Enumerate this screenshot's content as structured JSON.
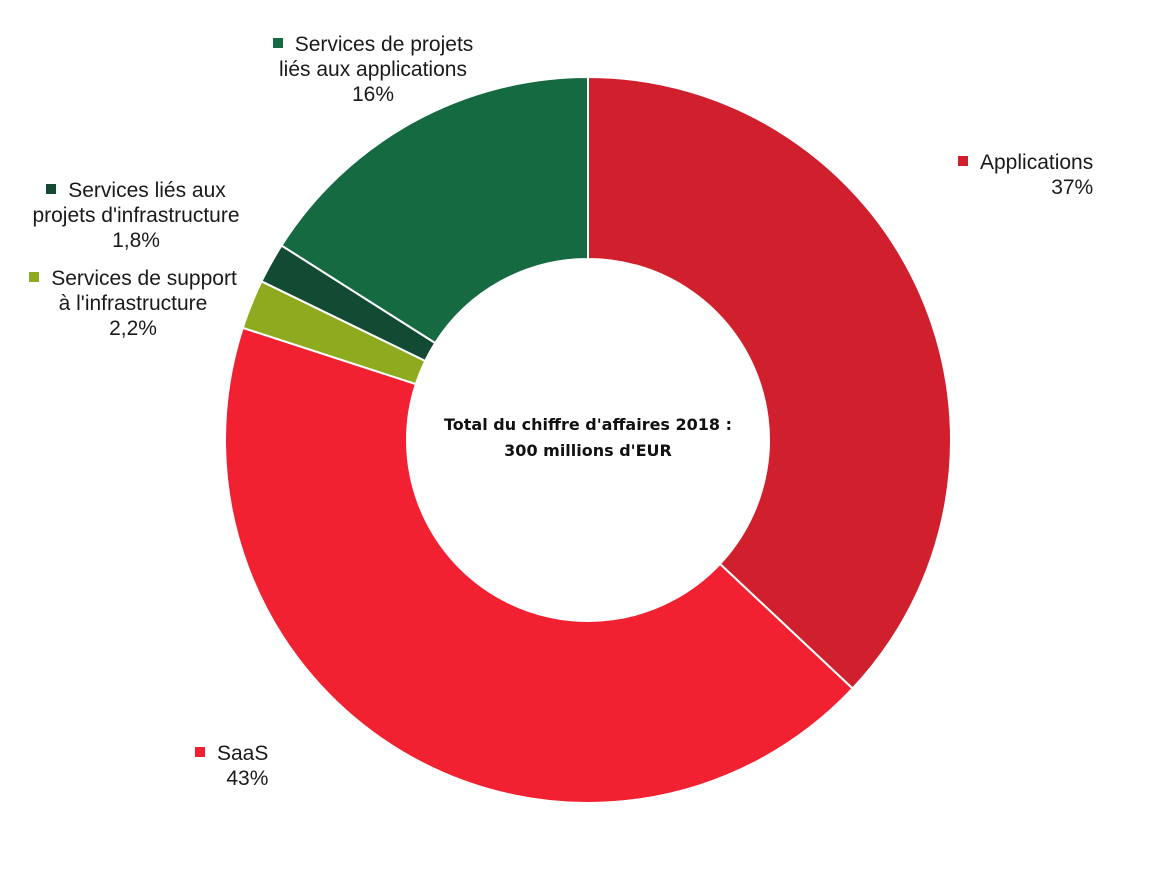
{
  "chart_data": {
    "type": "pie",
    "subtype": "donut",
    "center_text": [
      "Total du chiffre d'affaires 2018 :",
      "300 millions d'EUR"
    ],
    "slices": [
      {
        "name_lines": [
          "Applications"
        ],
        "value": 37,
        "label": "37%",
        "color": "#d0202e"
      },
      {
        "name_lines": [
          "SaaS"
        ],
        "value": 43,
        "label": "43%",
        "color": "#f22131"
      },
      {
        "name_lines": [
          "Services de support",
          "à l'infrastructure"
        ],
        "value": 2.2,
        "label": "2,2%",
        "color": "#8eab1f"
      },
      {
        "name_lines": [
          "Services liés aux",
          "projets d'infrastructure"
        ],
        "value": 1.8,
        "label": "1,8%",
        "color": "#124a33"
      },
      {
        "name_lines": [
          "Services de projets",
          "liés aux applications"
        ],
        "value": 16,
        "label": "16%",
        "color": "#156a42"
      }
    ]
  }
}
